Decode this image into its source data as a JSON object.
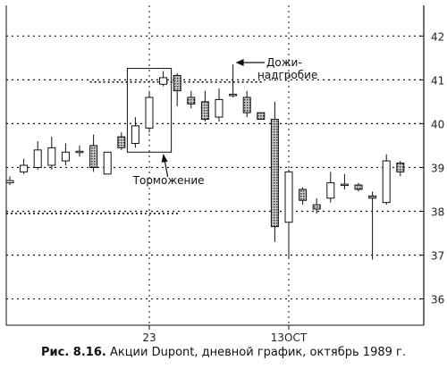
{
  "chart_data": {
    "type": "candlestick",
    "title": "",
    "xlabel": "",
    "ylabel": "",
    "ylim": [
      35.4,
      42.7
    ],
    "y_ticks": [
      36,
      37,
      38,
      39,
      40,
      41,
      42
    ],
    "x_tick_labels": [
      {
        "label": "23",
        "index": 10
      },
      {
        "label": "13OCT",
        "index": 20
      }
    ],
    "grid": true,
    "legend": "none",
    "colors": {
      "up": "#ffffff",
      "down": "#8a8a8a",
      "line": "#111111"
    },
    "candles": [
      {
        "o": 38.65,
        "h": 38.8,
        "l": 38.6,
        "c": 38.7
      },
      {
        "o": 38.9,
        "h": 39.2,
        "l": 38.85,
        "c": 39.05
      },
      {
        "o": 39.0,
        "h": 39.6,
        "l": 38.95,
        "c": 39.4
      },
      {
        "o": 39.05,
        "h": 39.7,
        "l": 38.95,
        "c": 39.45
      },
      {
        "o": 39.15,
        "h": 39.55,
        "l": 39.05,
        "c": 39.35
      },
      {
        "o": 39.35,
        "h": 39.5,
        "l": 39.25,
        "c": 39.37
      },
      {
        "o": 39.5,
        "h": 39.75,
        "l": 38.9,
        "c": 39.0
      },
      {
        "o": 38.85,
        "h": 39.35,
        "l": 38.85,
        "c": 39.35
      },
      {
        "o": 39.7,
        "h": 39.8,
        "l": 39.4,
        "c": 39.45
      },
      {
        "o": 39.55,
        "h": 40.15,
        "l": 39.45,
        "c": 39.95
      },
      {
        "o": 39.9,
        "h": 40.75,
        "l": 39.8,
        "c": 40.6
      },
      {
        "o": 40.9,
        "h": 41.2,
        "l": 40.85,
        "c": 41.05
      },
      {
        "o": 41.1,
        "h": 41.15,
        "l": 40.4,
        "c": 40.75
      },
      {
        "o": 40.6,
        "h": 40.75,
        "l": 40.35,
        "c": 40.45
      },
      {
        "o": 40.5,
        "h": 40.75,
        "l": 40.05,
        "c": 40.1
      },
      {
        "o": 40.15,
        "h": 40.8,
        "l": 40.05,
        "c": 40.55
      },
      {
        "o": 40.65,
        "h": 41.35,
        "l": 40.6,
        "c": 40.67
      },
      {
        "o": 40.6,
        "h": 40.75,
        "l": 40.15,
        "c": 40.25
      },
      {
        "o": 40.25,
        "h": 40.2,
        "l": 40.1,
        "c": 40.1
      },
      {
        "o": 40.1,
        "h": 40.5,
        "l": 37.3,
        "c": 37.65
      },
      {
        "o": 37.75,
        "h": 38.95,
        "l": 36.95,
        "c": 38.9
      },
      {
        "o": 38.5,
        "h": 38.55,
        "l": 38.15,
        "c": 38.25
      },
      {
        "o": 38.15,
        "h": 38.3,
        "l": 37.95,
        "c": 38.05
      },
      {
        "o": 38.3,
        "h": 38.9,
        "l": 38.2,
        "c": 38.65
      },
      {
        "o": 38.6,
        "h": 38.85,
        "l": 38.5,
        "c": 38.62
      },
      {
        "o": 38.6,
        "h": 38.65,
        "l": 38.45,
        "c": 38.5
      },
      {
        "o": 38.35,
        "h": 38.45,
        "l": 36.9,
        "c": 38.3
      },
      {
        "o": 38.2,
        "h": 39.3,
        "l": 38.15,
        "c": 39.15
      },
      {
        "o": 39.1,
        "h": 39.15,
        "l": 38.8,
        "c": 38.9
      }
    ],
    "extra_dotted_levels": [
      {
        "y": 37.95,
        "from_index": 0,
        "to_index": 12
      },
      {
        "y": 40.95,
        "from_index": 6,
        "to_index": 18
      }
    ],
    "annotations": [
      {
        "text": "Торможение",
        "target_index": 11,
        "target_y": 39.4
      },
      {
        "text": "Дожи-",
        "line2": "надгробие",
        "target_index": 16,
        "target_y": 41.35
      }
    ]
  },
  "caption": {
    "figure": "Рис. 8.16.",
    "text": " Акции Dupont, дневной график, октябрь 1989 г."
  }
}
